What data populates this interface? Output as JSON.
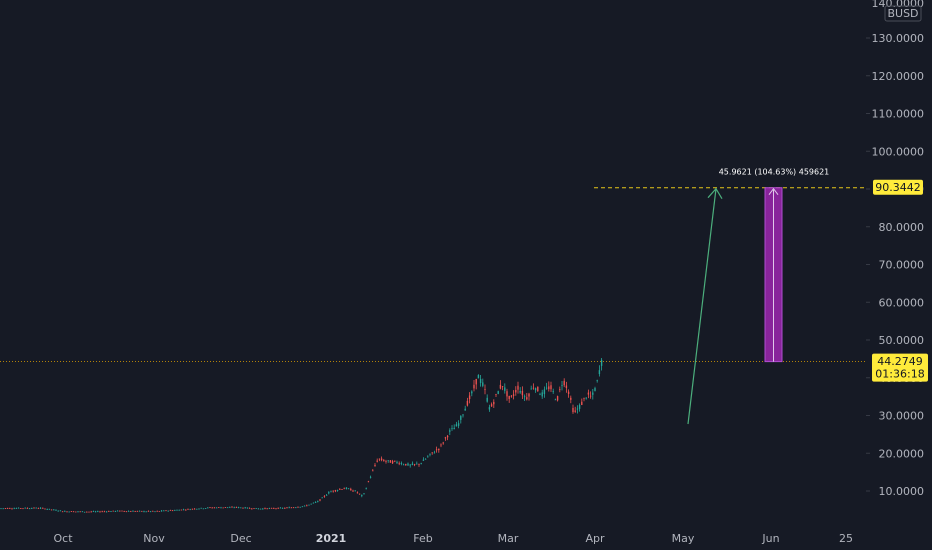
{
  "chart_data": {
    "type": "candlestick",
    "symbol_quote": "BUSD",
    "y_ticks": [
      "140.0000",
      "130.0000",
      "120.0000",
      "110.0000",
      "100.0000",
      "90.0000",
      "80.0000",
      "70.0000",
      "60.0000",
      "50.0000",
      "40.0000",
      "30.0000",
      "20.0000",
      "10.0000"
    ],
    "y_tick_values": [
      140,
      130,
      120,
      110,
      100,
      90,
      80,
      70,
      60,
      50,
      40,
      30,
      20,
      10
    ],
    "ylim": [
      -3,
      142
    ],
    "x_ticks": [
      {
        "label": "Oct",
        "bold": false
      },
      {
        "label": "Nov",
        "bold": false
      },
      {
        "label": "Dec",
        "bold": false
      },
      {
        "label": "2021",
        "bold": true
      },
      {
        "label": "Feb",
        "bold": false
      },
      {
        "label": "Mar",
        "bold": false
      },
      {
        "label": "Apr",
        "bold": false
      },
      {
        "label": "May",
        "bold": false
      },
      {
        "label": "Jun",
        "bold": false
      },
      {
        "label": "25",
        "bold": false
      }
    ],
    "price_path": [
      [
        0,
        5.4
      ],
      [
        40,
        5.5
      ],
      [
        65,
        4.6
      ],
      [
        90,
        4.5
      ],
      [
        120,
        4.7
      ],
      [
        155,
        4.6
      ],
      [
        185,
        5.1
      ],
      [
        210,
        5.6
      ],
      [
        235,
        5.7
      ],
      [
        260,
        5.3
      ],
      [
        285,
        5.5
      ],
      [
        305,
        6.0
      ],
      [
        318,
        7.2
      ],
      [
        330,
        9.8
      ],
      [
        345,
        10.8
      ],
      [
        356,
        9.9
      ],
      [
        363,
        8.5
      ],
      [
        370,
        13.5
      ],
      [
        378,
        18.5
      ],
      [
        388,
        17.8
      ],
      [
        398,
        17.6
      ],
      [
        410,
        16.8
      ],
      [
        420,
        17.2
      ],
      [
        430,
        19.5
      ],
      [
        440,
        21.5
      ],
      [
        450,
        25.8
      ],
      [
        458,
        27.5
      ],
      [
        466,
        32.5
      ],
      [
        473,
        36.5
      ],
      [
        478,
        40.5
      ],
      [
        484,
        37.5
      ],
      [
        490,
        31.5
      ],
      [
        496,
        35.0
      ],
      [
        502,
        38.5
      ],
      [
        510,
        34.0
      ],
      [
        518,
        37.5
      ],
      [
        526,
        34.5
      ],
      [
        534,
        38.0
      ],
      [
        542,
        35.5
      ],
      [
        550,
        37.8
      ],
      [
        557,
        34.0
      ],
      [
        563,
        39.5
      ],
      [
        568,
        37.0
      ],
      [
        574,
        30.5
      ],
      [
        580,
        32.5
      ],
      [
        587,
        35.5
      ],
      [
        592,
        34.8
      ],
      [
        597,
        38.5
      ],
      [
        601,
        44.0
      ],
      [
        603,
        44.27
      ]
    ],
    "last_price": "44.2749",
    "last_price_value": 44.2749,
    "countdown": "01:36:18",
    "target_price": "90.3442",
    "target_price_value": 90.3442,
    "measure_label": "45.9621 (104.63%) 459621",
    "colors": {
      "background": "#161a25",
      "up": "#26a69a",
      "down": "#ef5350",
      "target_line": "#e6c619",
      "target_badge": "#ffeb3b",
      "last_price_badge": "#ffeb3b",
      "projection_arrow": "#4caf7d",
      "measure_box": "#9c27b0",
      "axis_text": "#b2b5be"
    }
  }
}
